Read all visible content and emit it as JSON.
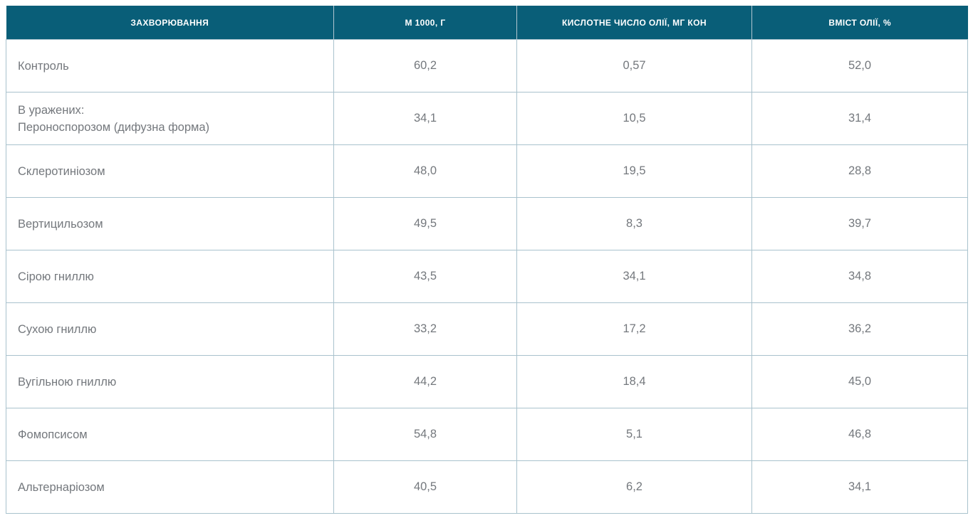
{
  "colors": {
    "header_bg": "#095e78",
    "header_text": "#ffffff",
    "grid_border": "#a9c2cd",
    "body_text": "#74787d"
  },
  "chart_data": {
    "type": "table",
    "title": "",
    "columns": [
      "ЗАХВОРЮВАННЯ",
      "М 1000, Г",
      "КИСЛОТНЕ ЧИСЛО ОЛІЇ, МГ КОН",
      "ВМІСТ ОЛІЇ, %"
    ],
    "rows": [
      [
        "Контроль",
        "60,2",
        "0,57",
        "52,0"
      ],
      [
        "В уражених:\nПероноспорозом (дифузна форма)",
        "34,1",
        "10,5",
        "31,4"
      ],
      [
        "Склеротиніозом",
        "48,0",
        "19,5",
        "28,8"
      ],
      [
        "Вертицильозом",
        "49,5",
        "8,3",
        "39,7"
      ],
      [
        "Сірою гниллю",
        "43,5",
        "34,1",
        "34,8"
      ],
      [
        "Сухою гниллю",
        "33,2",
        "17,2",
        "36,2"
      ],
      [
        "Вугільною гниллю",
        "44,2",
        "18,4",
        "45,0"
      ],
      [
        "Фомопсисом",
        "54,8",
        "5,1",
        "46,8"
      ],
      [
        "Альтернаріозом",
        "40,5",
        "6,2",
        "34,1"
      ]
    ]
  }
}
